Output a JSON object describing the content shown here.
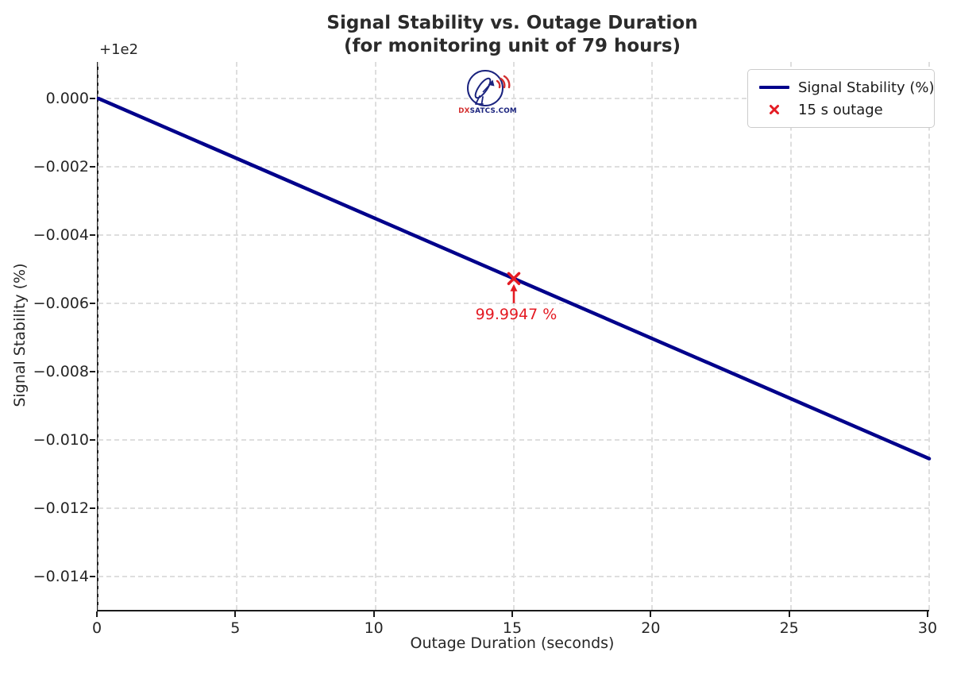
{
  "page": {
    "background": "#ffffff"
  },
  "chart_data": {
    "type": "line",
    "title": "Signal Stability vs. Outage Duration",
    "subtitle": "(for monitoring unit of 79 hours)",
    "xlabel": "Outage Duration (seconds)",
    "ylabel": "Signal Stability (%)",
    "y_offset_text": "+1e2",
    "y_offset_base": 100,
    "xlim": [
      0,
      30
    ],
    "ylim_offset": [
      -0.014977,
      0.00107
    ],
    "xticks": [
      0,
      5,
      10,
      15,
      20,
      25,
      30
    ],
    "xtick_labels": [
      "0",
      "5",
      "10",
      "15",
      "20",
      "25",
      "30"
    ],
    "ytick_offsets": [
      0,
      -0.002,
      -0.004,
      -0.006,
      -0.008,
      -0.01,
      -0.012,
      -0.014
    ],
    "ytick_labels": [
      "0.000",
      "−0.002",
      "−0.004",
      "−0.006",
      "−0.008",
      "−0.010",
      "−0.012",
      "−0.014"
    ],
    "grid": true,
    "grid_style": "dashed",
    "legend_position": "upper right",
    "series": [
      {
        "name": "Signal Stability (%)",
        "color": "#00008b",
        "points_offset": [
          [
            0,
            0.0
          ],
          [
            15,
            -0.0052743
          ],
          [
            30,
            -0.0105485
          ]
        ]
      }
    ],
    "marker_point": {
      "x": 15,
      "y_offset": -0.0052743,
      "value": 99.9947,
      "label": "99.9947 %",
      "legend_label": "15 s outage",
      "color": "#e41b23",
      "marker": "x"
    },
    "axis_color": "#1a1a1a",
    "grid_color": "#dedede",
    "text_color": "#262626",
    "watermark": {
      "text_accent": "DX",
      "text_rest": "SATCS.COM",
      "color_primary": "#1a237e",
      "color_accent": "#d32f2f"
    }
  }
}
